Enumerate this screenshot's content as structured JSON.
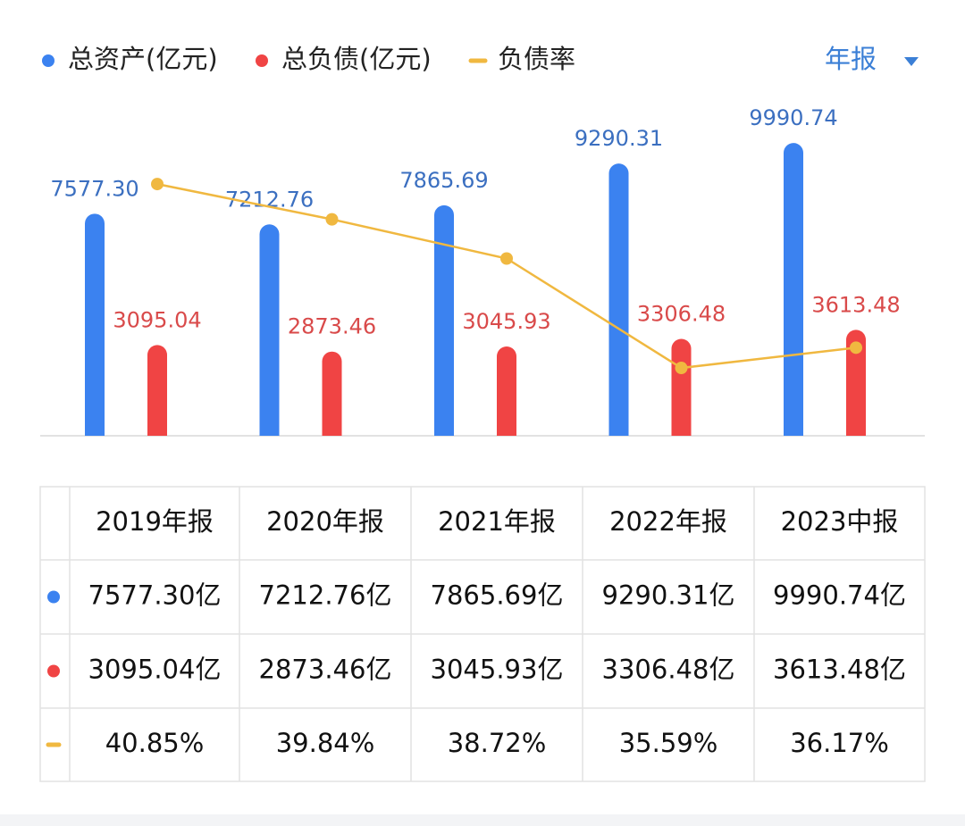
{
  "chart_data": {
    "type": "bar",
    "categories": [
      "2019年报",
      "2020年报",
      "2021年报",
      "2022年报",
      "2023中报"
    ],
    "series": [
      {
        "name": "总资产(亿元)",
        "color": "#3b82f0",
        "values": [
          7577.3,
          7212.76,
          7865.69,
          9290.31,
          9990.74
        ],
        "value_labels": [
          "7577.30",
          "7212.76",
          "7865.69",
          "9290.31",
          "9990.74"
        ]
      },
      {
        "name": "总负债(亿元)",
        "color": "#f04444",
        "values": [
          3095.04,
          2873.46,
          3045.93,
          3306.48,
          3613.48
        ],
        "value_labels": [
          "3095.04",
          "2873.46",
          "3045.93",
          "3306.48",
          "3613.48"
        ]
      },
      {
        "name": "负债率",
        "type": "line",
        "axis": "y2",
        "color": "#f0b840",
        "values": [
          40.85,
          39.84,
          38.72,
          35.59,
          36.17
        ]
      }
    ],
    "ylim": [
      0,
      11000
    ],
    "y2lim": [
      33.65,
      42.87
    ],
    "legend": "top-left",
    "period_selector": "年报"
  },
  "table": {
    "rows": [
      [
        "7577.30亿",
        "7212.76亿",
        "7865.69亿",
        "9290.31亿",
        "9990.74亿"
      ],
      [
        "3095.04亿",
        "2873.46亿",
        "3045.93亿",
        "3306.48亿",
        "3613.48亿"
      ],
      [
        "40.85%",
        "39.84%",
        "38.72%",
        "35.59%",
        "36.17%"
      ]
    ]
  }
}
